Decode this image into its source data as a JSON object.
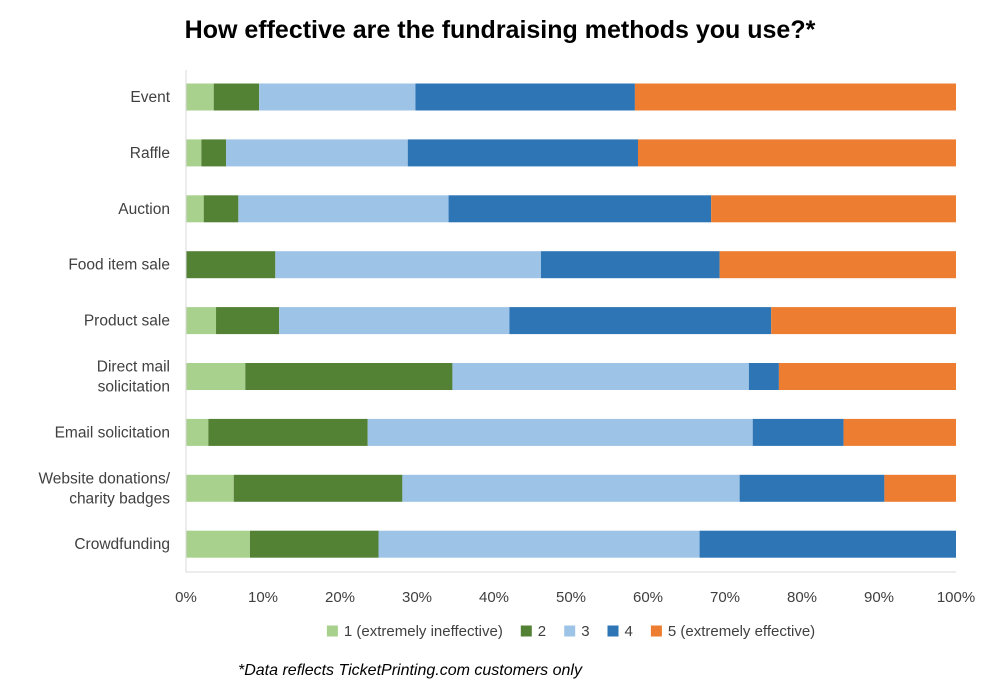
{
  "chart_data": {
    "type": "bar",
    "orientation": "horizontal",
    "stacked": "percent",
    "title": "How effective are the fundraising methods you use?*",
    "footnote": "*Data reflects TicketPrinting.com customers only",
    "categories": [
      [
        "Event"
      ],
      [
        "Raffle"
      ],
      [
        "Auction"
      ],
      [
        "Food item sale"
      ],
      [
        "Product sale"
      ],
      [
        "Direct mail",
        "solicitation"
      ],
      [
        "Email solicitation"
      ],
      [
        "Website donations/",
        "charity badges"
      ],
      [
        "Crowdfunding"
      ]
    ],
    "series": [
      {
        "name": "1 (extremely ineffective)",
        "color": "#a9d18e",
        "values": [
          3.6,
          2.0,
          2.3,
          0.0,
          3.9,
          7.7,
          2.9,
          6.2,
          8.3
        ]
      },
      {
        "name": "2",
        "color": "#548235",
        "values": [
          5.9,
          3.2,
          4.5,
          11.6,
          8.2,
          26.9,
          20.7,
          21.9,
          16.7
        ]
      },
      {
        "name": "3",
        "color": "#9dc3e6",
        "values": [
          20.3,
          23.6,
          27.3,
          34.5,
          29.9,
          38.5,
          50.0,
          43.8,
          41.7
        ]
      },
      {
        "name": "4",
        "color": "#2e75b6",
        "values": [
          28.5,
          29.9,
          34.1,
          23.2,
          34.0,
          3.9,
          11.8,
          18.8,
          33.3
        ]
      },
      {
        "name": "5 (extremely effective)",
        "color": "#ed7d31",
        "values": [
          41.7,
          41.3,
          31.8,
          30.7,
          24.0,
          23.0,
          14.6,
          9.3,
          0.0
        ]
      }
    ],
    "xlim": [
      0,
      100
    ],
    "x_ticks": [
      "0%",
      "10%",
      "20%",
      "30%",
      "40%",
      "50%",
      "60%",
      "70%",
      "80%",
      "90%",
      "100%"
    ],
    "grid": false,
    "legend_position": "bottom"
  }
}
